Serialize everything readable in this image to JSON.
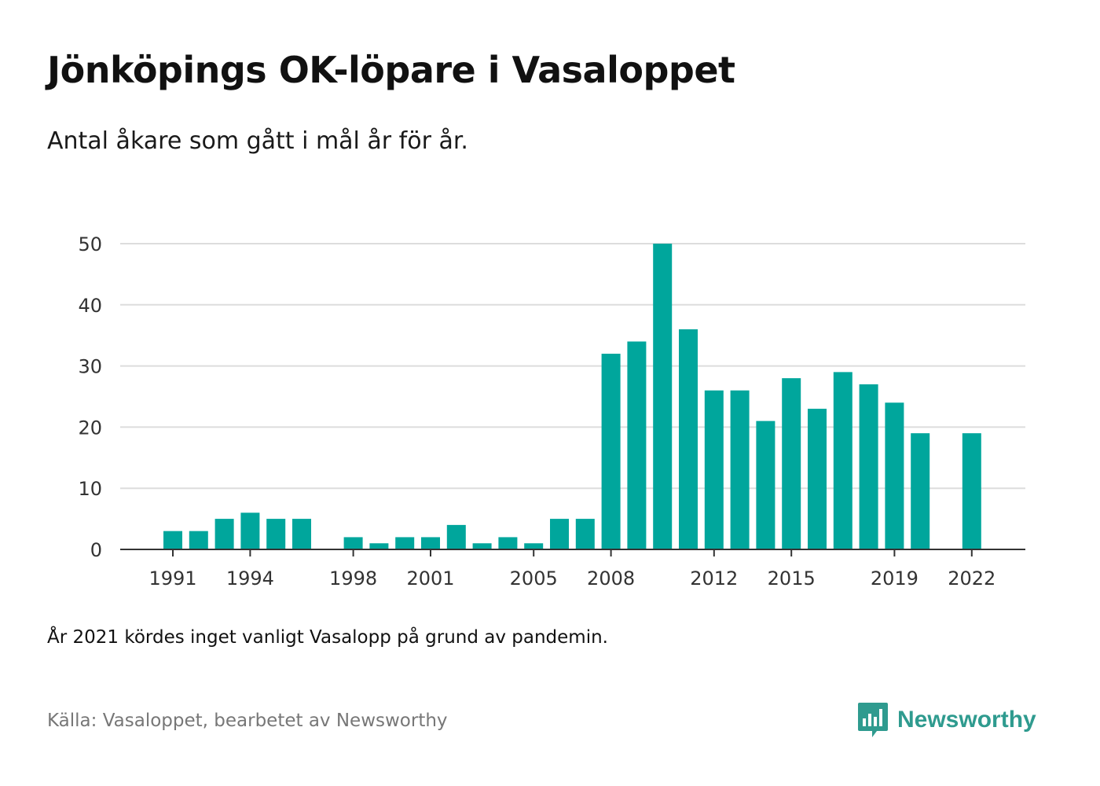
{
  "title": "Jönköpings OK-löpare i Vasaloppet",
  "subtitle": "Antal åkare som gått i mål år för år.",
  "footnote": "År 2021 kördes inget vanligt Vasalopp på grund av pandemin.",
  "source": "Källa: Vasaloppet, bearbetet av Newsworthy",
  "logo": {
    "text": "Newsworthy",
    "icon": "newsworthy-chart-logo-icon"
  },
  "colors": {
    "bar": "#00a69c",
    "grid": "#dddddd",
    "axis": "#333333",
    "logo": "#2f9b8f"
  },
  "chart_data": {
    "type": "bar",
    "categories": [
      "1991",
      "1992",
      "1993",
      "1994",
      "1995",
      "1996",
      "1997",
      "1998",
      "1999",
      "2000",
      "2001",
      "2002",
      "2003",
      "2004",
      "2005",
      "2006",
      "2007",
      "2008",
      "2009",
      "2010",
      "2011",
      "2012",
      "2013",
      "2014",
      "2015",
      "2016",
      "2017",
      "2018",
      "2019",
      "2020",
      "2021",
      "2022"
    ],
    "values": [
      3,
      3,
      5,
      6,
      5,
      5,
      0,
      2,
      1,
      2,
      2,
      4,
      1,
      2,
      1,
      5,
      5,
      32,
      34,
      50,
      36,
      26,
      26,
      21,
      28,
      23,
      29,
      27,
      24,
      19,
      null,
      19
    ],
    "x_tick_labels": [
      "1991",
      "1994",
      "1998",
      "2001",
      "2005",
      "2008",
      "2012",
      "2015",
      "2019",
      "2022"
    ],
    "y_ticks": [
      0,
      10,
      20,
      30,
      40,
      50
    ],
    "ylim": [
      0,
      50
    ],
    "grid": true,
    "xlabel": "",
    "ylabel": ""
  }
}
